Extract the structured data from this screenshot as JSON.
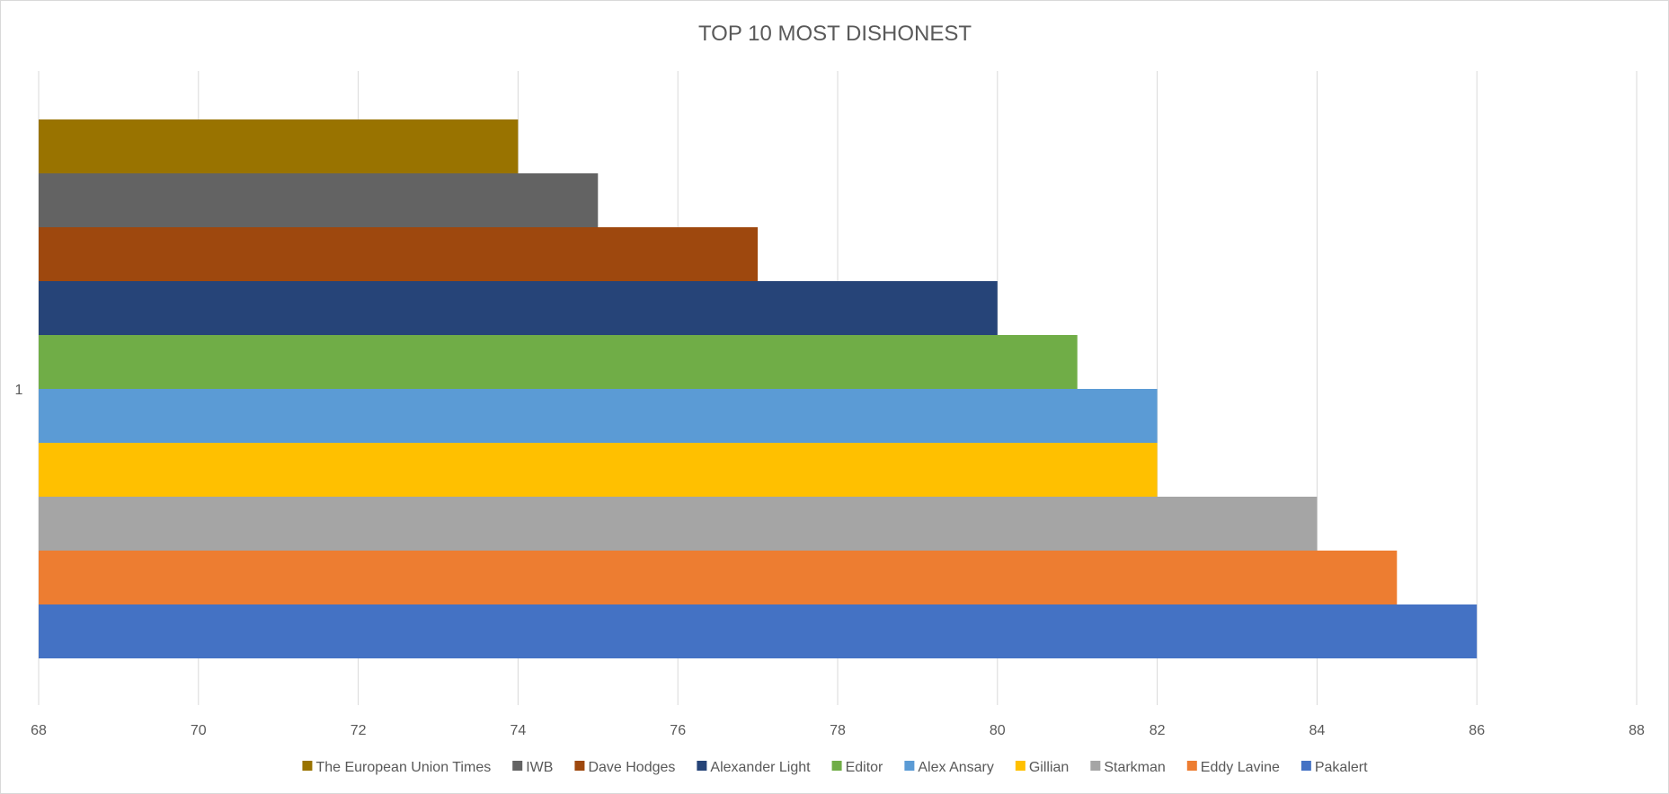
{
  "chart_data": {
    "type": "bar",
    "orientation": "horizontal",
    "title": "TOP 10 MOST DISHONEST",
    "categories": [
      "1"
    ],
    "xlim": [
      68,
      88
    ],
    "xticks": [
      "68",
      "70",
      "72",
      "74",
      "76",
      "78",
      "80",
      "82",
      "84",
      "86",
      "88"
    ],
    "grid": true,
    "legend_position": "bottom",
    "series": [
      {
        "name": "Pakalert",
        "values": [
          86
        ],
        "color": "#4472C4"
      },
      {
        "name": "Eddy Lavine",
        "values": [
          85
        ],
        "color": "#ED7D31"
      },
      {
        "name": "Starkman",
        "values": [
          84
        ],
        "color": "#A5A5A5"
      },
      {
        "name": "Gillian",
        "values": [
          82
        ],
        "color": "#FFC000"
      },
      {
        "name": "Alex Ansary",
        "values": [
          82
        ],
        "color": "#5B9BD5"
      },
      {
        "name": "Editor",
        "values": [
          81
        ],
        "color": "#70AD47"
      },
      {
        "name": "Alexander Light",
        "values": [
          80
        ],
        "color": "#264478"
      },
      {
        "name": "Dave Hodges",
        "values": [
          77
        ],
        "color": "#9E480E"
      },
      {
        "name": "IWB",
        "values": [
          75
        ],
        "color": "#636363"
      },
      {
        "name": "The European Union Times",
        "values": [
          74
        ],
        "color": "#997300"
      }
    ]
  }
}
